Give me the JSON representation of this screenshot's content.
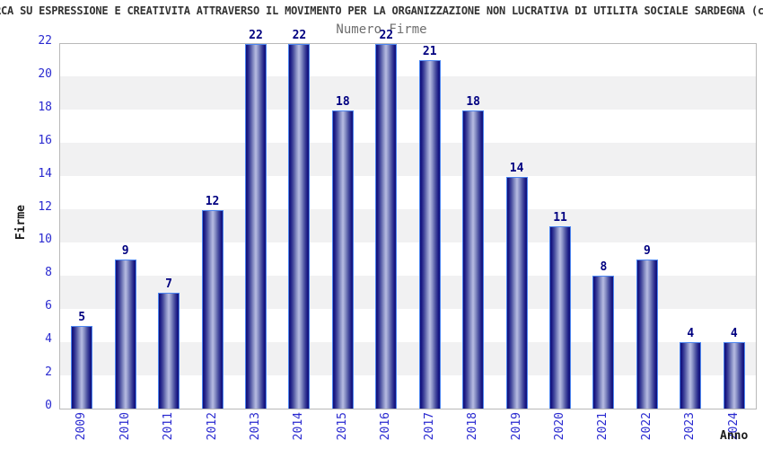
{
  "title": "RCA SU ESPRESSIONE E CREATIVITA ATTRAVERSO IL MOVIMENTO PER LA ORGANIZZAZIONE NON LUCRATIVA DI UTILITA SOCIALE SARDEGNA (c",
  "subtitle": "Numero Firme",
  "chart_data": {
    "type": "bar",
    "title": "Numero Firme",
    "xlabel": "Anno",
    "ylabel": "Firme",
    "categories": [
      "2009",
      "2010",
      "2011",
      "2012",
      "2013",
      "2014",
      "2015",
      "2016",
      "2017",
      "2018",
      "2019",
      "2020",
      "2021",
      "2022",
      "2023",
      "2024"
    ],
    "values": [
      5,
      9,
      7,
      12,
      22,
      22,
      18,
      22,
      21,
      18,
      14,
      11,
      8,
      9,
      4,
      4
    ],
    "ylim": [
      0,
      22
    ],
    "ytick_step": 2,
    "yticks": [
      0,
      2,
      4,
      6,
      8,
      10,
      12,
      14,
      16,
      18,
      20,
      22
    ],
    "legend": "none",
    "grid": "alternating-horizontal-bands",
    "colors": {
      "bar_edge_dark": "#101078",
      "bar_mid_dark": "#1c1c86",
      "bar_shoulder": "#4a4fa0",
      "bar_light": "#8b92c6",
      "bar_center_light": "#b7bce2",
      "bar_outline": "#4d86f0",
      "value_label": "#000080",
      "tick_label": "#2a2ad0",
      "axis_label": "#1a1a1a",
      "band_gray": "#f1f1f2",
      "band_white": "#ffffff",
      "frame": "#b9b9b9",
      "title_text": "#333333",
      "subtitle_text": "#6e6e6e"
    }
  }
}
